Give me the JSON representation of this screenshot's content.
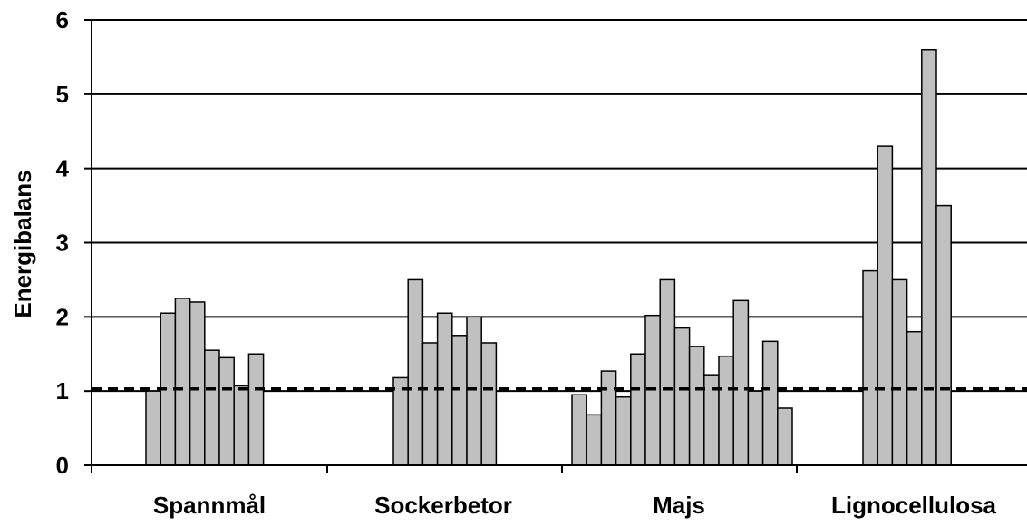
{
  "chart_data": {
    "type": "bar",
    "ylabel": "Energibalans",
    "xlabel": "",
    "ylim": [
      0,
      6
    ],
    "yticks": [
      "0",
      "1",
      "2",
      "3",
      "4",
      "5",
      "6"
    ],
    "grid": true,
    "reference_line": 1.03,
    "groups": [
      {
        "label": "Spannmål",
        "values": [
          1.0,
          2.05,
          2.25,
          2.2,
          1.55,
          1.45,
          1.07,
          1.5
        ]
      },
      {
        "label": "Sockerbetor",
        "values": [
          1.18,
          2.5,
          1.65,
          2.05,
          1.75,
          2.0,
          1.65
        ]
      },
      {
        "label": "Majs",
        "values": [
          0.95,
          0.68,
          1.27,
          0.92,
          1.5,
          2.02,
          2.5,
          1.85,
          1.6,
          1.22,
          1.47,
          2.22,
          1.0,
          1.67,
          0.77
        ]
      },
      {
        "label": "Lignocellulosa",
        "values": [
          2.62,
          4.3,
          2.5,
          1.8,
          5.6,
          3.5
        ]
      }
    ],
    "colors": {
      "bar_fill": "#c0c0c0",
      "bar_stroke": "#000000",
      "grid": "#000000",
      "reference": "#000000"
    }
  }
}
